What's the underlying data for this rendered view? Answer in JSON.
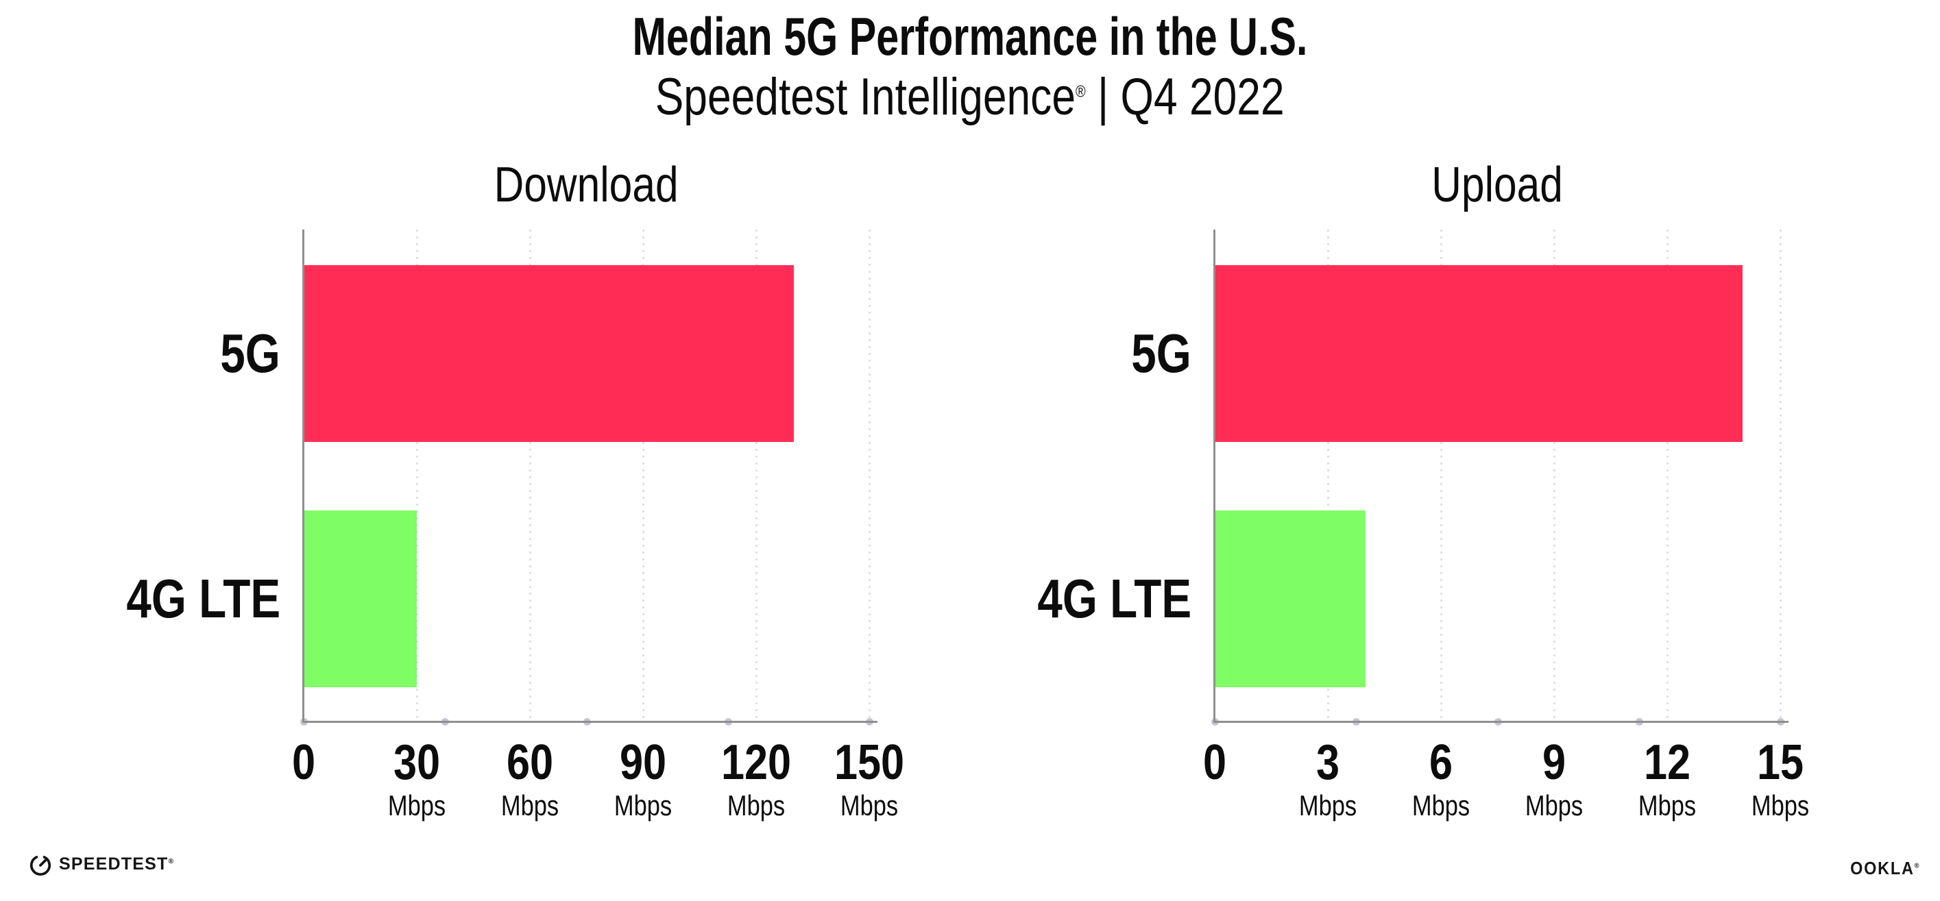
{
  "header": {
    "title": "Median 5G Performance in the U.S.",
    "subtitle_brand": "Speedtest Intelligence",
    "subtitle_reg": "®",
    "subtitle_rest": " | Q4 2022"
  },
  "chart_data": [
    {
      "type": "bar",
      "orientation": "horizontal",
      "title": "Download",
      "categories": [
        "5G",
        "4G LTE"
      ],
      "values": [
        130,
        30
      ],
      "unit": "Mbps",
      "xlim": [
        0,
        150
      ],
      "xticks": [
        0,
        30,
        60,
        90,
        120,
        150
      ],
      "bar_colors": [
        "#FF2D55",
        "#7EFD65"
      ],
      "grid": "dotted-vertical",
      "legend": "none"
    },
    {
      "type": "bar",
      "orientation": "horizontal",
      "title": "Upload",
      "categories": [
        "5G",
        "4G LTE"
      ],
      "values": [
        14,
        4
      ],
      "unit": "Mbps",
      "xlim": [
        0,
        15
      ],
      "xticks": [
        0,
        3,
        6,
        9,
        12,
        15
      ],
      "bar_colors": [
        "#FF2D55",
        "#7EFD65"
      ],
      "grid": "dotted-vertical",
      "legend": "none"
    }
  ],
  "footer": {
    "speedtest_label": "SPEEDTEST",
    "speedtest_reg": "®",
    "ookla_label": "OOKLA",
    "ookla_reg": "®"
  },
  "colors": {
    "bar_5g": "#FF2D55",
    "bar_4g_lte": "#7EFD65",
    "axis": "#8F8F8F",
    "gridline_dot": "#DFDFE9",
    "axis_end_dot": "#C6C6D1",
    "text": "#0C0C0C",
    "background": "#FFFFFF"
  }
}
